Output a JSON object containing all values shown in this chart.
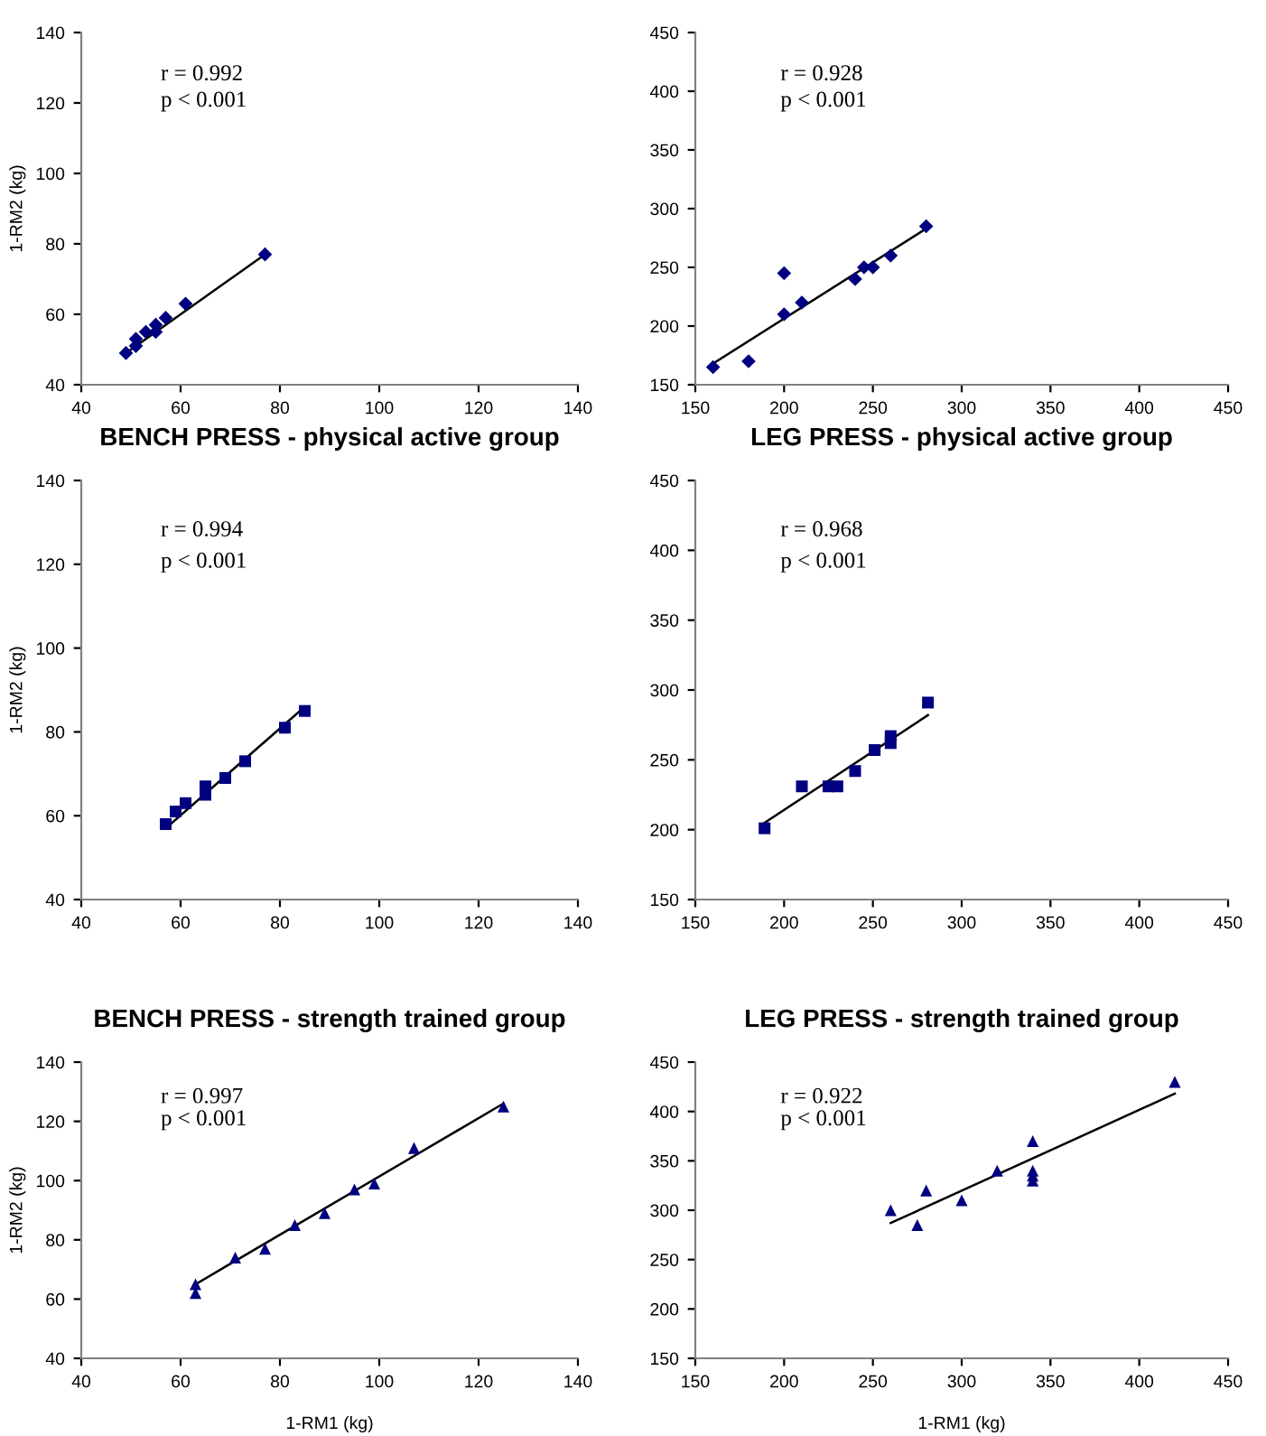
{
  "chart_data": [
    {
      "type": "scatter",
      "ylabel": "1-RM2 (kg)",
      "xlim": [
        40,
        140
      ],
      "ylim": [
        40,
        140
      ],
      "xticks": [
        40,
        60,
        80,
        100,
        120,
        140
      ],
      "yticks": [
        40,
        60,
        80,
        100,
        120,
        140
      ],
      "grid": false,
      "legend": false,
      "annotations": [
        "r = 0.992",
        "p < 0.001"
      ],
      "series": [
        {
          "marker": "diamond",
          "color": "#000080",
          "x": [
            49,
            51,
            51,
            53,
            55,
            55,
            57,
            61,
            77
          ],
          "values": [
            49,
            51,
            53,
            55,
            55,
            57,
            59,
            63,
            77
          ]
        },
        {
          "type": "line",
          "marker": "none",
          "color": "#000000",
          "x": [
            49,
            77
          ],
          "values": [
            49,
            77
          ]
        }
      ]
    },
    {
      "type": "scatter",
      "xlim": [
        150,
        450
      ],
      "ylim": [
        150,
        450
      ],
      "xticks": [
        150,
        200,
        250,
        300,
        350,
        400,
        450
      ],
      "yticks": [
        150,
        200,
        250,
        300,
        350,
        400,
        450
      ],
      "grid": false,
      "legend": false,
      "annotations": [
        "r = 0.928",
        "p < 0.001"
      ],
      "series": [
        {
          "marker": "diamond",
          "color": "#000080",
          "x": [
            160,
            180,
            200,
            200,
            210,
            240,
            245,
            250,
            260,
            280
          ],
          "values": [
            165,
            170,
            245,
            210,
            220,
            240,
            250,
            250,
            260,
            285
          ]
        },
        {
          "type": "line",
          "marker": "none",
          "color": "#000000",
          "x": [
            160,
            280
          ],
          "values": [
            168,
            283
          ]
        }
      ]
    },
    {
      "type": "scatter",
      "title": "BENCH PRESS - physical active group",
      "ylabel": "1-RM2 (kg)",
      "xlim": [
        40,
        140
      ],
      "ylim": [
        40,
        140
      ],
      "xticks": [
        40,
        60,
        80,
        100,
        120,
        140
      ],
      "yticks": [
        40,
        60,
        80,
        100,
        120,
        140
      ],
      "grid": false,
      "legend": false,
      "annotations": [
        "r = 0.994",
        "p < 0.001"
      ],
      "series": [
        {
          "marker": "square",
          "color": "#000080",
          "x": [
            57,
            59,
            61,
            65,
            65,
            69,
            73,
            81,
            85
          ],
          "values": [
            58,
            61,
            63,
            65,
            67,
            69,
            73,
            81,
            85
          ]
        },
        {
          "type": "line",
          "marker": "none",
          "color": "#000000",
          "x": [
            57,
            85
          ],
          "values": [
            57,
            86
          ]
        }
      ]
    },
    {
      "type": "scatter",
      "title": "LEG PRESS - physical active group",
      "xlim": [
        150,
        450
      ],
      "ylim": [
        150,
        450
      ],
      "xticks": [
        150,
        200,
        250,
        300,
        350,
        400,
        450
      ],
      "yticks": [
        150,
        200,
        250,
        300,
        350,
        400,
        450
      ],
      "grid": false,
      "legend": false,
      "annotations": [
        "r = 0.968",
        "p < 0.001"
      ],
      "series": [
        {
          "marker": "square",
          "color": "#000080",
          "x": [
            189,
            210,
            225,
            230,
            240,
            251,
            260,
            260,
            281
          ],
          "values": [
            201,
            231,
            231,
            231,
            242,
            257,
            262,
            267,
            291
          ]
        },
        {
          "type": "line",
          "marker": "none",
          "color": "#000000",
          "x": [
            189,
            281
          ],
          "values": [
            205,
            282
          ]
        }
      ]
    },
    {
      "type": "scatter",
      "title": "BENCH PRESS - strength trained group",
      "xlabel": "1-RM1 (kg)",
      "ylabel": "1-RM2 (kg)",
      "xlim": [
        40,
        140
      ],
      "ylim": [
        40,
        140
      ],
      "xticks": [
        40,
        60,
        80,
        100,
        120,
        140
      ],
      "yticks": [
        40,
        60,
        80,
        100,
        120,
        140
      ],
      "grid": false,
      "legend": false,
      "annotations": [
        "r = 0.997",
        "p < 0.001"
      ],
      "series": [
        {
          "marker": "triangle",
          "color": "#000080",
          "x": [
            63,
            63,
            71,
            77,
            83,
            89,
            95,
            99,
            107,
            125
          ],
          "values": [
            62,
            65,
            74,
            77,
            85,
            89,
            97,
            99,
            111,
            125
          ]
        },
        {
          "type": "line",
          "marker": "none",
          "color": "#000000",
          "x": [
            63,
            125
          ],
          "values": [
            65,
            126
          ]
        }
      ]
    },
    {
      "type": "scatter",
      "title": "LEG PRESS - strength trained group",
      "xlabel": "1-RM1 (kg)",
      "xlim": [
        150,
        450
      ],
      "ylim": [
        150,
        450
      ],
      "xticks": [
        150,
        200,
        250,
        300,
        350,
        400,
        450
      ],
      "yticks": [
        150,
        200,
        250,
        300,
        350,
        400,
        450
      ],
      "grid": false,
      "legend": false,
      "annotations": [
        "r = 0.922",
        "p < 0.001"
      ],
      "series": [
        {
          "marker": "triangle",
          "color": "#000080",
          "x": [
            260,
            275,
            280,
            300,
            320,
            340,
            340,
            340,
            340,
            420
          ],
          "values": [
            300,
            285,
            320,
            310,
            340,
            370,
            340,
            335,
            330,
            430
          ]
        },
        {
          "type": "line",
          "marker": "none",
          "color": "#000000",
          "x": [
            260,
            420
          ],
          "values": [
            287,
            418
          ]
        }
      ]
    }
  ]
}
